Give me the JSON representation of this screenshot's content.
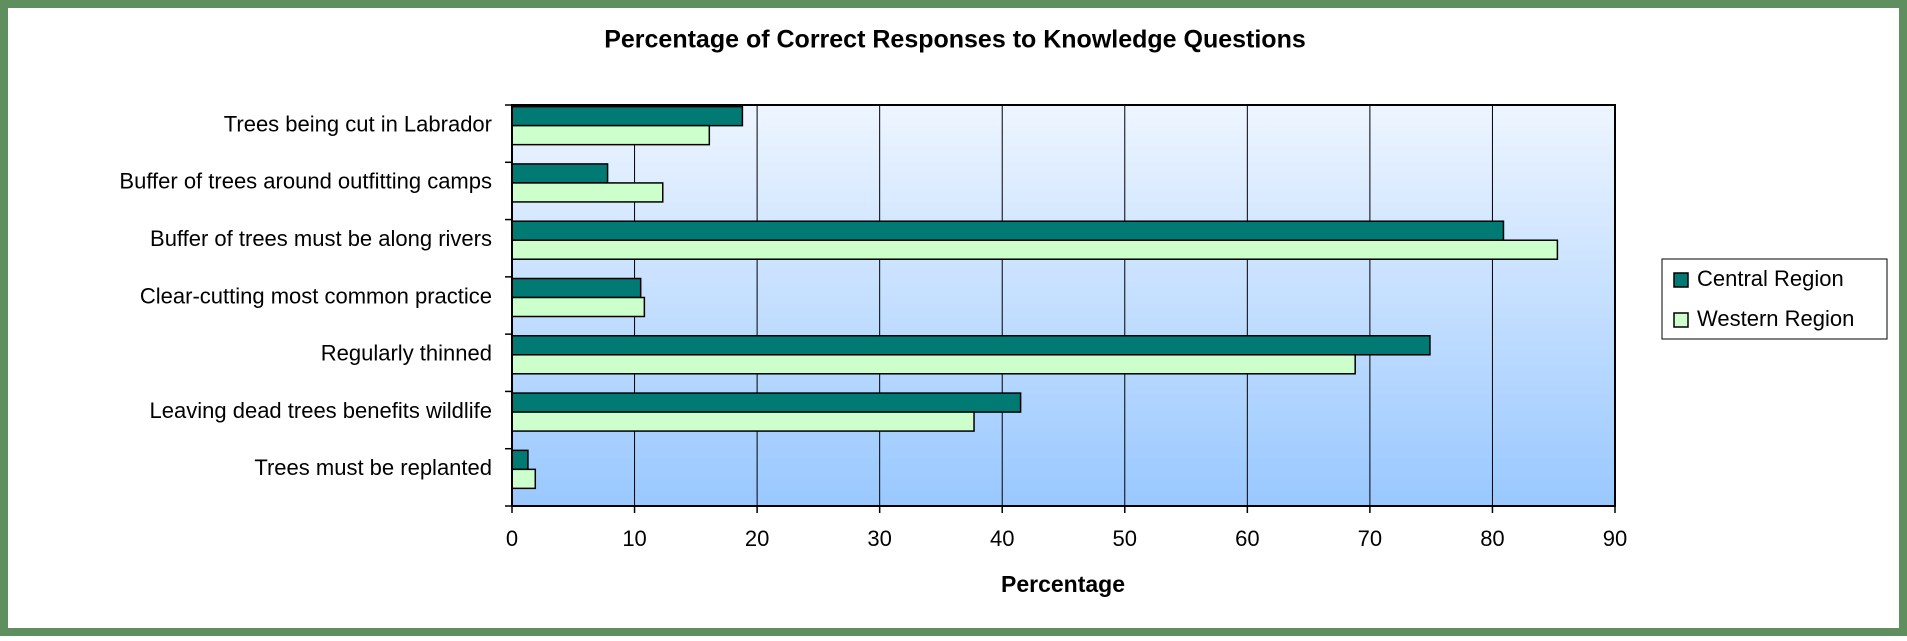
{
  "chart_data": {
    "type": "bar",
    "orientation": "horizontal",
    "title": "Percentage of Correct Responses to Knowledge Questions",
    "x_label": "Percentage",
    "categories": [
      "Trees being cut in Labrador",
      "Buffer of trees around outfitting camps",
      "Buffer of trees must be along rivers",
      "Clear-cutting most common practice",
      "Regularly thinned",
      "Leaving dead trees benefits wildlife",
      "Trees must be replanted"
    ],
    "series": [
      {
        "name": "Central Region",
        "color": "#007a73",
        "values": [
          18.8,
          7.8,
          80.9,
          10.5,
          74.9,
          41.5,
          1.3
        ]
      },
      {
        "name": "Western Region",
        "color": "#ccffcc",
        "values": [
          16.1,
          12.3,
          85.3,
          10.8,
          68.8,
          37.7,
          1.9
        ]
      }
    ],
    "xlim": [
      0,
      90
    ],
    "xticks": [
      0,
      10,
      20,
      30,
      40,
      50,
      60,
      70,
      80,
      90
    ],
    "grid": true,
    "legend": "right"
  }
}
